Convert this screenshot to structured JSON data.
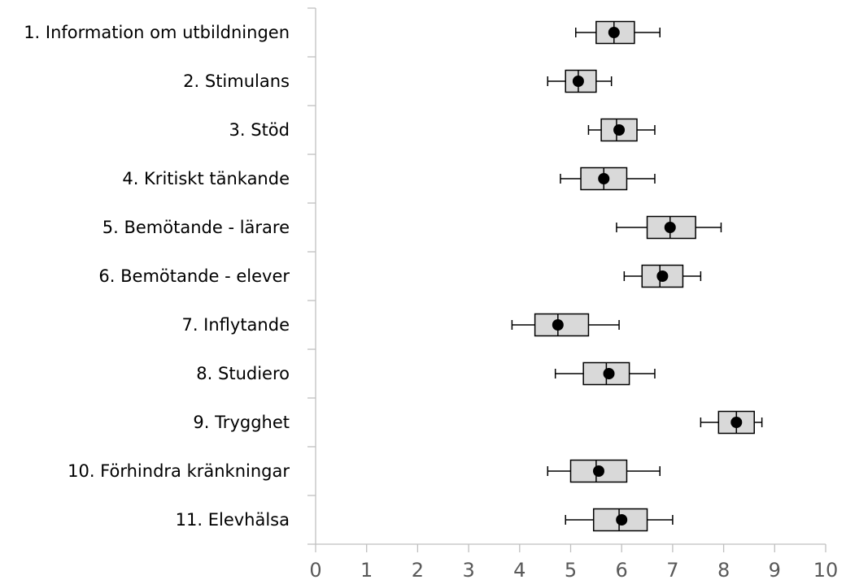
{
  "chart_data": {
    "type": "boxplot",
    "orientation": "horizontal",
    "title": "",
    "xlabel": "",
    "ylabel": "",
    "xlim": [
      0,
      10
    ],
    "xticks": [
      "0",
      "1",
      "2",
      "3",
      "4",
      "5",
      "6",
      "7",
      "8",
      "9",
      "10"
    ],
    "grid": false,
    "legend": "none",
    "colors": {
      "box_fill": "#d9d9d9",
      "box_stroke": "#000000",
      "marker": "#000000",
      "axis": "#bfbfbf",
      "tick_label": "#595959"
    },
    "categories": [
      "1. Information om utbildningen",
      "2. Stimulans",
      "3. Stöd",
      "4. Kritiskt tänkande",
      "5. Bemötande - lärare",
      "6. Bemötande - elever",
      "7. Inflytande",
      "8. Studiero",
      "9. Trygghet",
      "10. Förhindra kränkningar",
      "11. Elevhälsa"
    ],
    "boxes": [
      {
        "whisker_low": 5.1,
        "q1": 5.5,
        "median": 5.85,
        "q3": 6.25,
        "whisker_high": 6.75,
        "mean": 5.85
      },
      {
        "whisker_low": 4.55,
        "q1": 4.9,
        "median": 5.15,
        "q3": 5.5,
        "whisker_high": 5.8,
        "mean": 5.15
      },
      {
        "whisker_low": 5.35,
        "q1": 5.6,
        "median": 5.9,
        "q3": 6.3,
        "whisker_high": 6.65,
        "mean": 5.95
      },
      {
        "whisker_low": 4.8,
        "q1": 5.2,
        "median": 5.65,
        "q3": 6.1,
        "whisker_high": 6.65,
        "mean": 5.65
      },
      {
        "whisker_low": 5.9,
        "q1": 6.5,
        "median": 6.95,
        "q3": 7.45,
        "whisker_high": 7.95,
        "mean": 6.95
      },
      {
        "whisker_low": 6.05,
        "q1": 6.4,
        "median": 6.75,
        "q3": 7.2,
        "whisker_high": 7.55,
        "mean": 6.8
      },
      {
        "whisker_low": 3.85,
        "q1": 4.3,
        "median": 4.75,
        "q3": 5.35,
        "whisker_high": 5.95,
        "mean": 4.75
      },
      {
        "whisker_low": 4.7,
        "q1": 5.25,
        "median": 5.7,
        "q3": 6.15,
        "whisker_high": 6.65,
        "mean": 5.75
      },
      {
        "whisker_low": 7.55,
        "q1": 7.9,
        "median": 8.25,
        "q3": 8.6,
        "whisker_high": 8.75,
        "mean": 8.25
      },
      {
        "whisker_low": 4.55,
        "q1": 5.0,
        "median": 5.5,
        "q3": 6.1,
        "whisker_high": 6.75,
        "mean": 5.55
      },
      {
        "whisker_low": 4.9,
        "q1": 5.45,
        "median": 5.95,
        "q3": 6.5,
        "whisker_high": 7.0,
        "mean": 6.0
      }
    ]
  }
}
